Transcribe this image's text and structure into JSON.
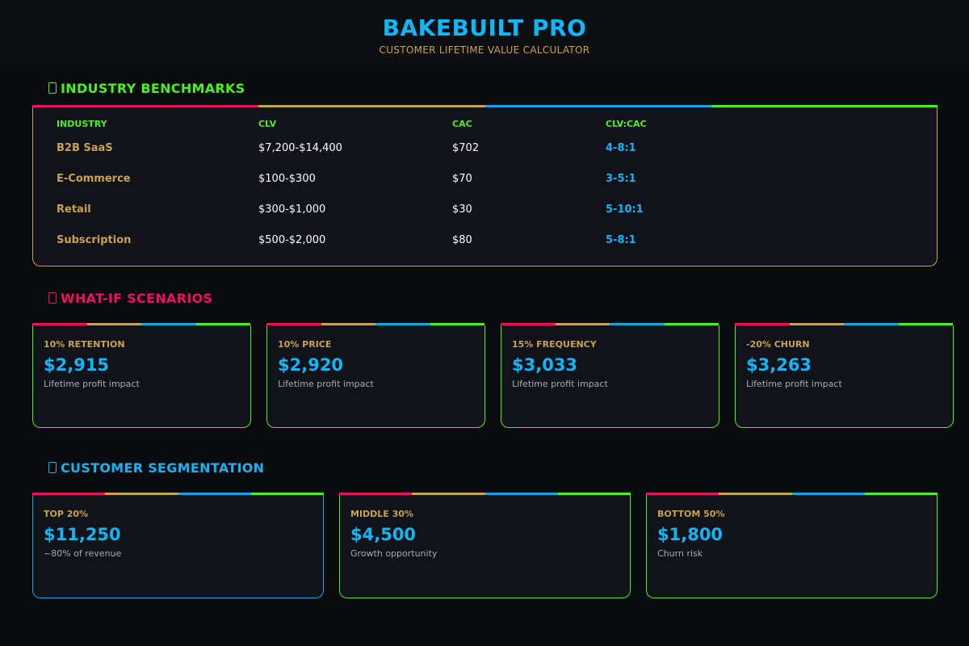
{
  "header": {
    "title": "BAKEBUILT PRO",
    "subtitle": "CUSTOMER LIFETIME VALUE CALCULATOR"
  },
  "benchmarks": {
    "title": "INDUSTRY BENCHMARKS",
    "title_color": "#4bf021",
    "columns": [
      "INDUSTRY",
      "CLV",
      "CAC",
      "CLV:CAC"
    ],
    "rows": [
      {
        "industry": "B2B SaaS",
        "clv": "$7,200-$14,400",
        "cac": "$702",
        "ratio": "4-8:1"
      },
      {
        "industry": "E-Commerce",
        "clv": "$100-$300",
        "cac": "$70",
        "ratio": "3-5:1"
      },
      {
        "industry": "Retail",
        "clv": "$300-$1,000",
        "cac": "$30",
        "ratio": "5-10:1"
      },
      {
        "industry": "Subscription",
        "clv": "$500-$2,000",
        "cac": "$80",
        "ratio": "5-8:1"
      }
    ]
  },
  "scenarios": {
    "title": "WHAT-IF SCENARIOS",
    "title_color": "#f0115e",
    "cards": [
      {
        "label": "10% RETENTION",
        "value": "$2,915",
        "note": "Lifetime profit impact"
      },
      {
        "label": "10% PRICE",
        "value": "$2,920",
        "note": "Lifetime profit impact"
      },
      {
        "label": "15% FREQUENCY",
        "value": "$3,033",
        "note": "Lifetime profit impact"
      },
      {
        "label": "-20% CHURN",
        "value": "$3,263",
        "note": "Lifetime profit impact"
      }
    ]
  },
  "segmentation": {
    "title": "CUSTOMER SEGMENTATION",
    "title_color": "#13b6f5",
    "cards": [
      {
        "label": "TOP 20%",
        "value": "$11,250",
        "note": "~80% of revenue"
      },
      {
        "label": "MIDDLE 30%",
        "value": "$4,500",
        "note": "Growth opportunity"
      },
      {
        "label": "BOTTOM 50%",
        "value": "$1,800",
        "note": "Churn risk"
      }
    ]
  },
  "colors": {
    "accent_blue": "#13b6f5",
    "accent_gold": "#c9a24f",
    "accent_pink": "#f0115e",
    "accent_green": "#4bf021",
    "background": "#0a0b0f"
  }
}
